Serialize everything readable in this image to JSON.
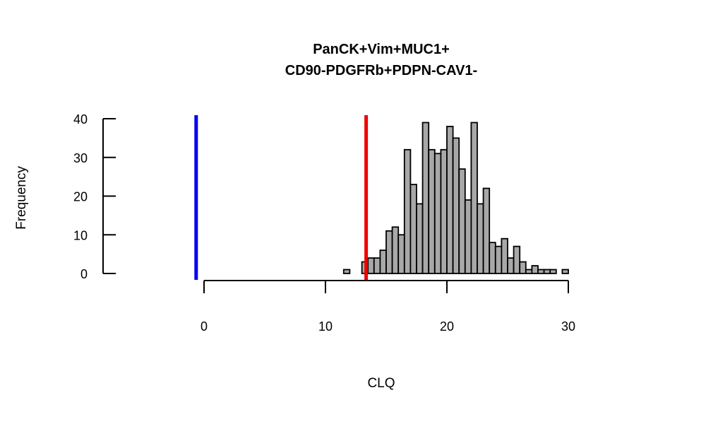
{
  "chart_data": {
    "type": "bar",
    "title_lines": [
      "PanCK+Vim+MUC1+",
      "CD90-PDGFRb+PDPN-CAV1-"
    ],
    "xlabel": "CLQ",
    "ylabel": "Frequency",
    "xlim": [
      0,
      30
    ],
    "ylim": [
      0,
      40
    ],
    "xticks": [
      0,
      10,
      20,
      30
    ],
    "yticks": [
      0,
      10,
      20,
      30,
      40
    ],
    "bin_width": 0.5,
    "bins": [
      {
        "x0": 11.5,
        "count": 1
      },
      {
        "x0": 12.0,
        "count": 0
      },
      {
        "x0": 12.5,
        "count": 0
      },
      {
        "x0": 13.0,
        "count": 3
      },
      {
        "x0": 13.5,
        "count": 4
      },
      {
        "x0": 14.0,
        "count": 4
      },
      {
        "x0": 14.5,
        "count": 6
      },
      {
        "x0": 15.0,
        "count": 11
      },
      {
        "x0": 15.5,
        "count": 12
      },
      {
        "x0": 16.0,
        "count": 10
      },
      {
        "x0": 16.5,
        "count": 32
      },
      {
        "x0": 17.0,
        "count": 23
      },
      {
        "x0": 17.5,
        "count": 18
      },
      {
        "x0": 18.0,
        "count": 39
      },
      {
        "x0": 18.5,
        "count": 32
      },
      {
        "x0": 19.0,
        "count": 31
      },
      {
        "x0": 19.5,
        "count": 32
      },
      {
        "x0": 20.0,
        "count": 38
      },
      {
        "x0": 20.5,
        "count": 35
      },
      {
        "x0": 21.0,
        "count": 27
      },
      {
        "x0": 21.5,
        "count": 19
      },
      {
        "x0": 22.0,
        "count": 39
      },
      {
        "x0": 22.5,
        "count": 18
      },
      {
        "x0": 23.0,
        "count": 22
      },
      {
        "x0": 23.5,
        "count": 8
      },
      {
        "x0": 24.0,
        "count": 7
      },
      {
        "x0": 24.5,
        "count": 9
      },
      {
        "x0": 25.0,
        "count": 4
      },
      {
        "x0": 25.5,
        "count": 7
      },
      {
        "x0": 26.0,
        "count": 3
      },
      {
        "x0": 26.5,
        "count": 1
      },
      {
        "x0": 27.0,
        "count": 2
      },
      {
        "x0": 27.5,
        "count": 1
      },
      {
        "x0": 28.0,
        "count": 1
      },
      {
        "x0": 28.5,
        "count": 1
      },
      {
        "x0": 29.0,
        "count": 0
      },
      {
        "x0": 29.5,
        "count": 1
      }
    ],
    "vlines": [
      {
        "x": -0.65,
        "color": "#0000ee"
      },
      {
        "x": 13.35,
        "color": "#ee0000"
      }
    ],
    "bar_color": "#a8a8a8",
    "grid": false
  }
}
